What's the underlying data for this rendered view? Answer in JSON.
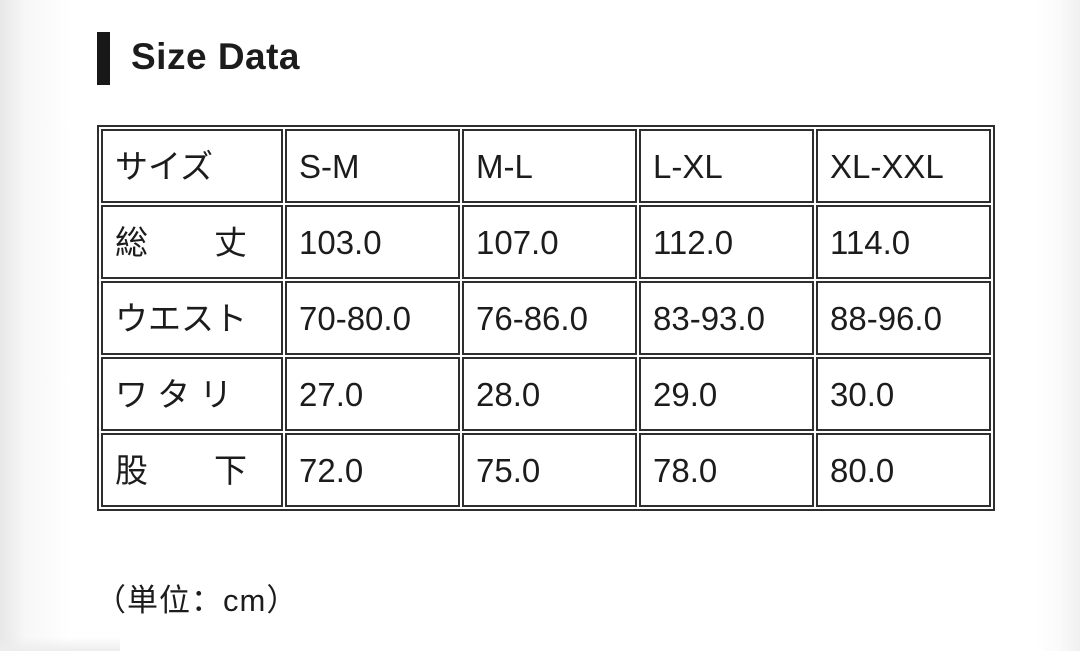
{
  "page": {
    "title": "Size Data",
    "unit_note": "（単位：cm）"
  },
  "size_table": {
    "header": {
      "label": "サイズ",
      "columns": [
        "S-M",
        "M-L",
        "L-XL",
        "XL-XXL"
      ]
    },
    "rows": [
      {
        "label": "総　　丈",
        "values": [
          "103.0",
          "107.0",
          "112.0",
          "114.0"
        ]
      },
      {
        "label": "ウエスト",
        "values": [
          "70-80.0",
          "76-86.0",
          "83-93.0",
          "88-96.0"
        ]
      },
      {
        "label": "ワ タ リ",
        "values": [
          "27.0",
          "28.0",
          "29.0",
          "30.0"
        ]
      },
      {
        "label": "股　　下",
        "values": [
          "72.0",
          "75.0",
          "78.0",
          "80.0"
        ]
      }
    ]
  }
}
